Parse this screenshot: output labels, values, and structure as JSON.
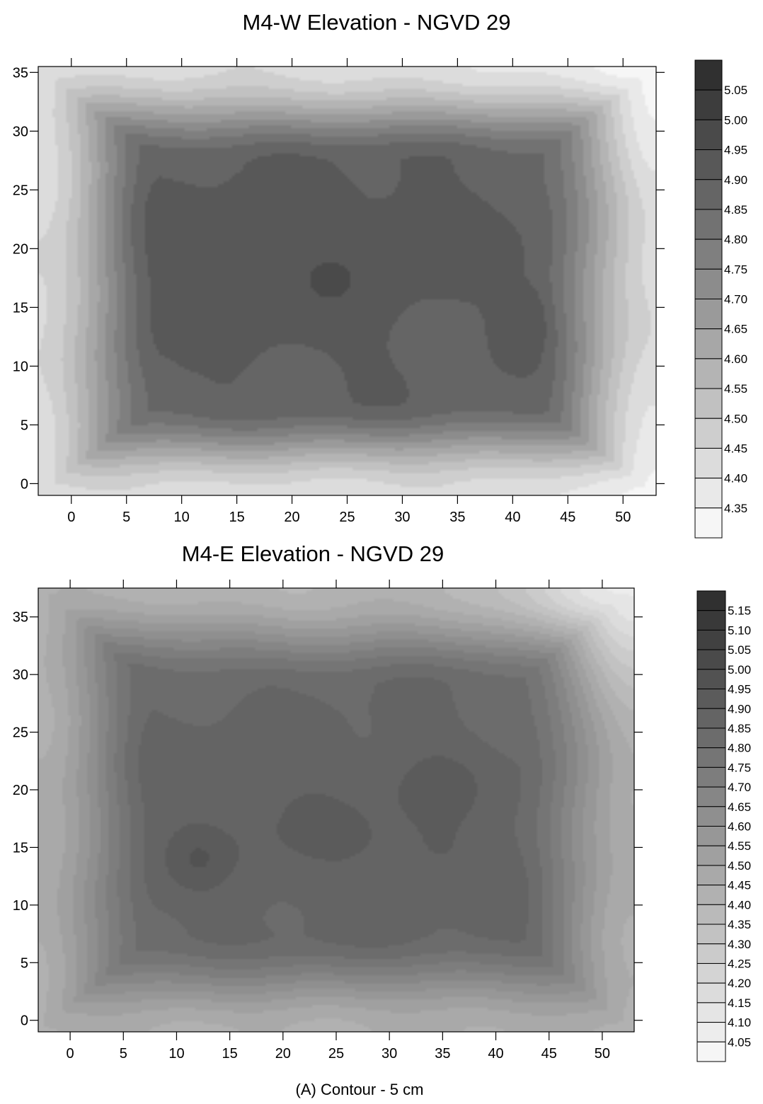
{
  "caption": "(A) Contour - 5 cm",
  "colors": {
    "dark": "#2f2f2f",
    "light": "#f4f4f4",
    "frame": "#000000",
    "background": "#ffffff"
  },
  "chart_data": [
    {
      "type": "heatmap",
      "subtype": "filled-contour",
      "title": "M4-W Elevation - NGVD 29",
      "xlabel": "",
      "ylabel": "",
      "xlim": [
        -3,
        53
      ],
      "ylim": [
        -1,
        35.5
      ],
      "x_ticks": [
        0,
        5,
        10,
        15,
        20,
        25,
        30,
        35,
        40,
        45,
        50
      ],
      "y_ticks": [
        0,
        5,
        10,
        15,
        20,
        25,
        30,
        35
      ],
      "contour_interval": 0.05,
      "z_range": [
        4.32,
        5.09
      ],
      "legend_levels": [
        "5.05",
        "5.00",
        "4.95",
        "4.90",
        "4.85",
        "4.80",
        "4.75",
        "4.70",
        "4.65",
        "4.60",
        "4.55",
        "4.50",
        "4.45",
        "4.40",
        "4.35"
      ],
      "legend_placement": "right",
      "field": {
        "base_edge": 4.45,
        "plateau": 4.9,
        "lows": [
          {
            "x": 18,
            "y": 18,
            "sx": 11,
            "sy": 6,
            "peak": 0.06
          },
          {
            "x": 33,
            "y": 21,
            "sx": 5,
            "sy": 3,
            "peak": 0.04
          },
          {
            "x": 41,
            "y": 14,
            "sx": 1.8,
            "sy": 2,
            "peak": 0.06
          }
        ],
        "corner_lights": [
          {
            "x": 53,
            "y": 35.5,
            "amp": 0.1
          },
          {
            "x": 53,
            "y": -1,
            "amp": 0.08
          }
        ]
      }
    },
    {
      "type": "heatmap",
      "subtype": "filled-contour",
      "title": "M4-E Elevation - NGVD 29",
      "xlabel": "",
      "ylabel": "",
      "xlim": [
        -3,
        53
      ],
      "ylim": [
        -1,
        37.5
      ],
      "x_ticks": [
        0,
        5,
        10,
        15,
        20,
        25,
        30,
        35,
        40,
        45,
        50
      ],
      "y_ticks": [
        0,
        5,
        10,
        15,
        20,
        25,
        30,
        35
      ],
      "contour_interval": 0.05,
      "z_range": [
        4.03,
        5.19
      ],
      "legend_levels": [
        "5.15",
        "5.10",
        "5.05",
        "5.00",
        "4.95",
        "4.90",
        "4.85",
        "4.80",
        "4.75",
        "4.70",
        "4.65",
        "4.60",
        "4.55",
        "4.50",
        "4.45",
        "4.40",
        "4.35",
        "4.30",
        "4.25",
        "4.20",
        "4.15",
        "4.10",
        "4.05"
      ],
      "legend_placement": "right",
      "field": {
        "base_edge": 4.48,
        "plateau": 4.88,
        "lows": [
          {
            "x": 20,
            "y": 17,
            "sx": 9,
            "sy": 5,
            "peak": 0.05
          },
          {
            "x": 12,
            "y": 14,
            "sx": 2,
            "sy": 1.8,
            "peak": 0.06
          },
          {
            "x": 34,
            "y": 21,
            "sx": 4,
            "sy": 2.5,
            "peak": 0.05
          },
          {
            "x": 34,
            "y": 14,
            "sx": 4,
            "sy": 2.5,
            "peak": 0.05
          }
        ],
        "corner_lights": [
          {
            "x": 53,
            "y": 37.5,
            "amp": 0.35
          },
          {
            "x": 20,
            "y": 37.5,
            "amp": 0.05
          }
        ]
      }
    }
  ]
}
